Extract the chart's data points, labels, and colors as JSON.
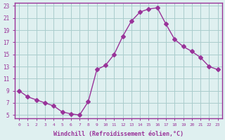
{
  "x": [
    0,
    1,
    2,
    3,
    4,
    5,
    6,
    7,
    8,
    9,
    10,
    11,
    12,
    13,
    14,
    15,
    16,
    17,
    18,
    19,
    20,
    21,
    22,
    23
  ],
  "y": [
    9,
    8,
    7.5,
    7,
    6.5,
    5.5,
    5.2,
    5,
    7.2,
    12.5,
    13.2,
    15,
    18,
    20.5,
    22,
    22.5,
    22.7,
    20,
    17.5,
    16.3,
    15.5,
    14.5,
    13,
    12.5
  ],
  "line_color": "#993399",
  "marker": "D",
  "marker_size": 3,
  "bg_color": "#dff0f0",
  "grid_color": "#aacccc",
  "xlabel": "Windchill (Refroidissement éolien,°C)",
  "xlabel_color": "#993399",
  "tick_color": "#993399",
  "axis_line_color": "#993399",
  "ylim": [
    4.5,
    23.5
  ],
  "yticks": [
    5,
    7,
    9,
    11,
    13,
    15,
    17,
    19,
    21,
    23
  ],
  "xticks": [
    0,
    1,
    2,
    3,
    4,
    5,
    6,
    7,
    8,
    9,
    10,
    11,
    12,
    13,
    14,
    15,
    16,
    17,
    18,
    19,
    20,
    21,
    22,
    23
  ],
  "xlim": [
    -0.5,
    23.5
  ]
}
